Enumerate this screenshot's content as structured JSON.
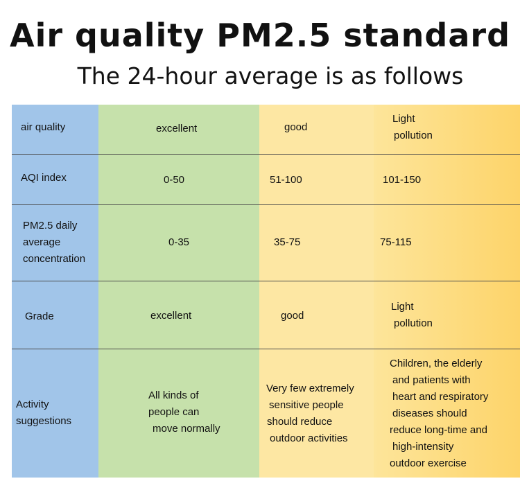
{
  "title": "Air quality PM2.5 standard",
  "subtitle": "The 24-hour average is as follows",
  "colors": {
    "header_col": "#a1c5e9",
    "excellent_col": "#c6e1ab",
    "good_col": "#fde7a3",
    "light_pollution_col": "#fdd46a"
  },
  "rows": {
    "air_quality": {
      "label": "air quality",
      "excellent": "excellent",
      "good": "good",
      "light_1": "Light",
      "light_2": "pollution"
    },
    "aqi": {
      "label": "AQI index",
      "excellent": "0-50",
      "good": "51-100",
      "light": "101-150"
    },
    "pm25": {
      "label_1": "PM2.5 daily",
      "label_2": "average",
      "label_3": "concentration",
      "excellent": "0-35",
      "good": "35-75",
      "light": "75-115"
    },
    "grade": {
      "label": "Grade",
      "excellent": "excellent",
      "good": "good",
      "light_1": "Light",
      "light_2": "pollution"
    },
    "activity": {
      "label_1": "Activity",
      "label_2": "suggestions",
      "excellent_1": "All kinds of",
      "excellent_2": "people can",
      "excellent_3": "move normally",
      "good_1": "Very few extremely",
      "good_2": "sensitive people",
      "good_3": "should reduce",
      "good_4": "outdoor activities",
      "light_1": "Children, the elderly",
      "light_2": "and patients with",
      "light_3": "heart and respiratory",
      "light_4": "diseases should",
      "light_5": "reduce long-time and",
      "light_6": "high-intensity",
      "light_7": "outdoor exercise"
    }
  }
}
